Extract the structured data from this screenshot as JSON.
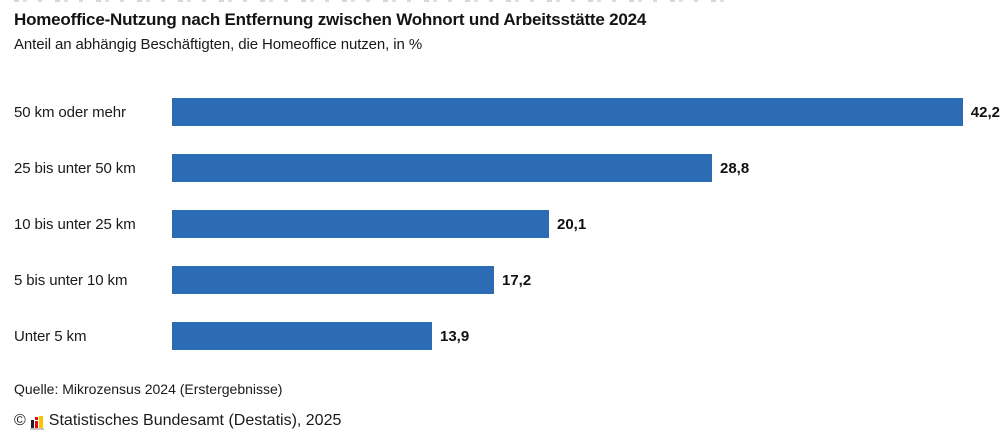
{
  "header": {
    "title": "Homeoffice-Nutzung nach Entfernung zwischen Wohnort und Arbeitsstätte 2024",
    "subtitle": "Anteil an abhängig Beschäftigten, die Homeoffice nutzen, in %"
  },
  "chart_data": {
    "type": "bar",
    "orientation": "horizontal",
    "title": "Homeoffice-Nutzung nach Entfernung zwischen Wohnort und Arbeitsstätte 2024",
    "subtitle": "Anteil an abhängig Beschäftigten, die Homeoffice nutzen, in %",
    "unit": "%",
    "categories": [
      "50 km oder mehr",
      "25 bis unter 50 km",
      "10 bis unter 25 km",
      "5 bis unter 10 km",
      "Unter 5 km"
    ],
    "values": [
      42.2,
      28.8,
      20.1,
      17.2,
      13.9
    ],
    "value_labels": [
      "42,2",
      "28,8",
      "20,1",
      "17,2",
      "13,9"
    ],
    "xlim": [
      0,
      44.2
    ],
    "grid": false,
    "legend": false,
    "bar_color": "#2b6cb4"
  },
  "footer": {
    "source": "Quelle: Mikrozensus 2024 (Erstergebnisse)",
    "copyright_symbol": "©",
    "copyright_text": "Statistisches Bundesamt (Destatis), 2025",
    "logo_icon": "destatis-bar-chart-icon"
  },
  "colors": {
    "bar": "#2b6cb4",
    "text": "#1a1a1a",
    "logo_black": "#1f1f1f",
    "logo_red": "#e30613",
    "logo_gold": "#fdc300",
    "logo_baseline": "#c4c4c4"
  }
}
